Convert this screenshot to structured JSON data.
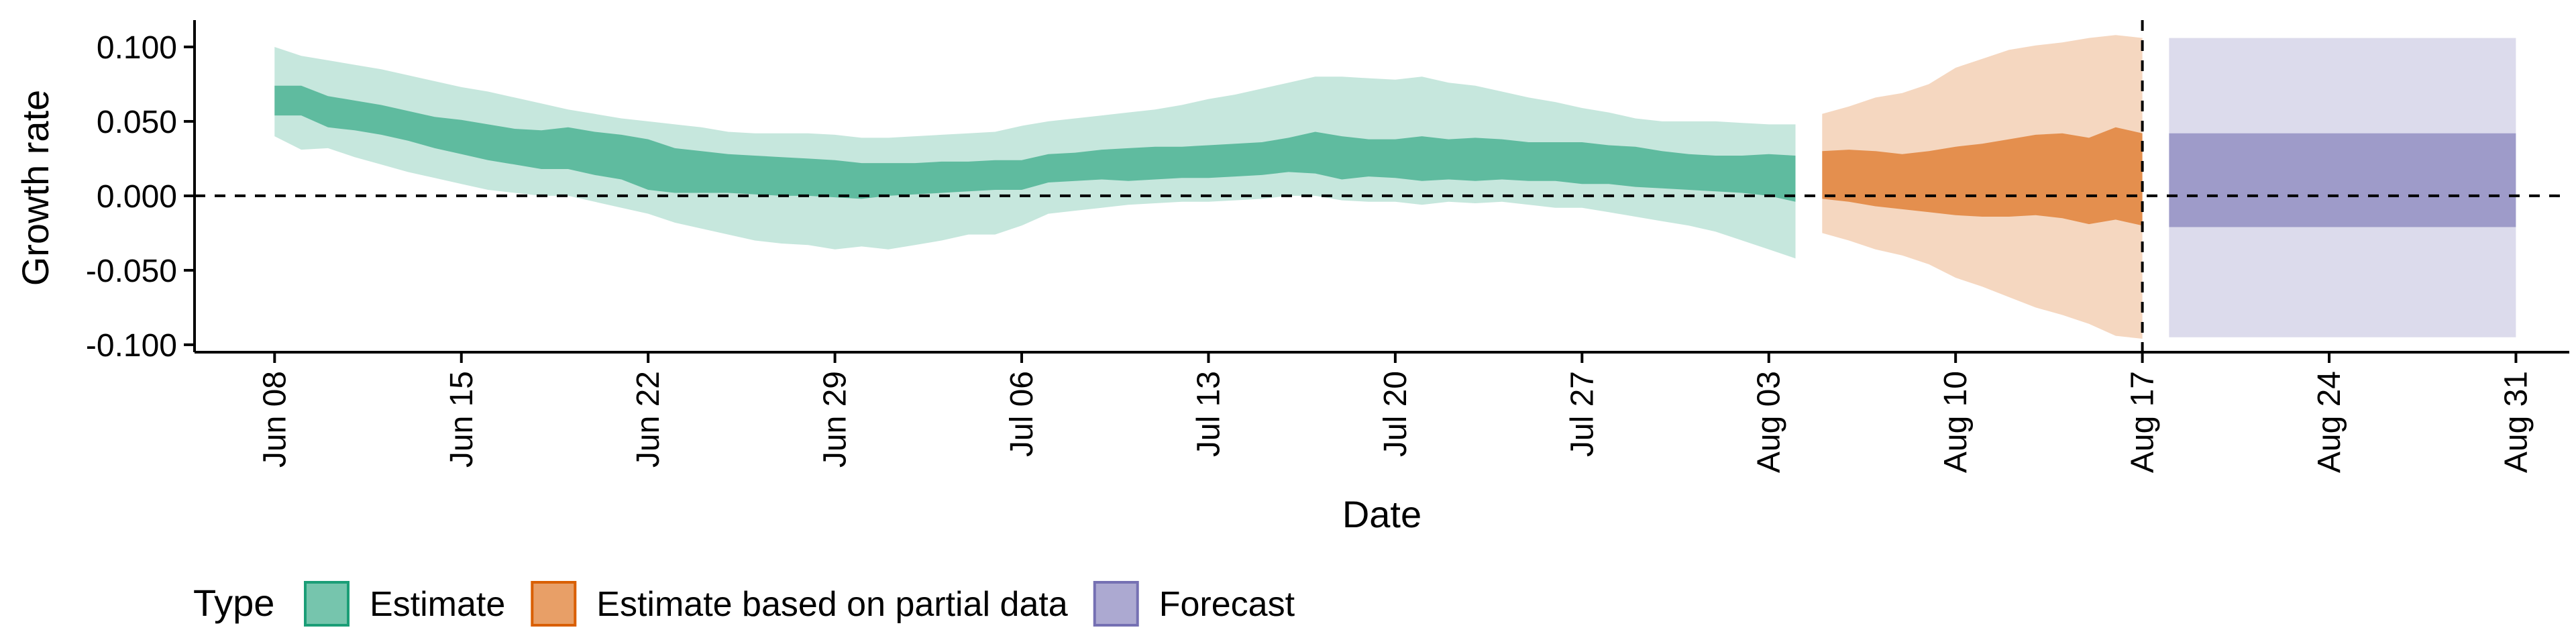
{
  "chart_data": {
    "type": "area",
    "xlabel": "Date",
    "ylabel": "Growth rate",
    "ylim": [
      -0.105,
      0.118
    ],
    "xlim": [
      "2020-06-05",
      "2020-09-02"
    ],
    "x_ticks": [
      "Jun 08",
      "Jun 15",
      "Jun 22",
      "Jun 29",
      "Jul 06",
      "Jul 13",
      "Jul 20",
      "Jul 27",
      "Aug 03",
      "Aug 10",
      "Aug 17",
      "Aug 24",
      "Aug 31"
    ],
    "x_tick_dates": [
      "2020-06-08",
      "2020-06-15",
      "2020-06-22",
      "2020-06-29",
      "2020-07-06",
      "2020-07-13",
      "2020-07-20",
      "2020-07-27",
      "2020-08-03",
      "2020-08-10",
      "2020-08-17",
      "2020-08-24",
      "2020-08-31"
    ],
    "y_ticks": [
      0.1,
      0.05,
      0.0,
      -0.05,
      -0.1
    ],
    "y_tick_labels": [
      "0.100",
      "0.050",
      "0.000",
      "-0.050",
      "-0.100"
    ],
    "hline": 0,
    "vline": "2020-08-17",
    "legend": {
      "title": "Type",
      "position": "bottom-left",
      "entries": [
        "Estimate",
        "Estimate based on partial data",
        "Forecast"
      ]
    },
    "series": [
      {
        "name": "Estimate",
        "color": "#1b9e77",
        "x": [
          "2020-06-08",
          "2020-06-09",
          "2020-06-10",
          "2020-06-11",
          "2020-06-12",
          "2020-06-13",
          "2020-06-14",
          "2020-06-15",
          "2020-06-16",
          "2020-06-17",
          "2020-06-18",
          "2020-06-19",
          "2020-06-20",
          "2020-06-21",
          "2020-06-22",
          "2020-06-23",
          "2020-06-24",
          "2020-06-25",
          "2020-06-26",
          "2020-06-27",
          "2020-06-28",
          "2020-06-29",
          "2020-06-30",
          "2020-07-01",
          "2020-07-02",
          "2020-07-03",
          "2020-07-04",
          "2020-07-05",
          "2020-07-06",
          "2020-07-07",
          "2020-07-08",
          "2020-07-09",
          "2020-07-10",
          "2020-07-11",
          "2020-07-12",
          "2020-07-13",
          "2020-07-14",
          "2020-07-15",
          "2020-07-16",
          "2020-07-17",
          "2020-07-18",
          "2020-07-19",
          "2020-07-20",
          "2020-07-21",
          "2020-07-22",
          "2020-07-23",
          "2020-07-24",
          "2020-07-25",
          "2020-07-26",
          "2020-07-27",
          "2020-07-28",
          "2020-07-29",
          "2020-07-30",
          "2020-07-31",
          "2020-08-01",
          "2020-08-02",
          "2020-08-03",
          "2020-08-04"
        ],
        "lower_90": [
          0.04,
          0.031,
          0.032,
          0.026,
          0.021,
          0.016,
          0.012,
          0.008,
          0.004,
          0.002,
          0.0,
          0.0,
          -0.004,
          -0.008,
          -0.012,
          -0.018,
          -0.022,
          -0.026,
          -0.03,
          -0.032,
          -0.033,
          -0.036,
          -0.034,
          -0.036,
          -0.033,
          -0.03,
          -0.026,
          -0.026,
          -0.02,
          -0.012,
          -0.01,
          -0.008,
          -0.006,
          -0.005,
          -0.004,
          -0.004,
          -0.003,
          -0.002,
          0.0,
          0.0,
          -0.003,
          -0.004,
          -0.004,
          -0.006,
          -0.004,
          -0.005,
          -0.004,
          -0.006,
          -0.008,
          -0.008,
          -0.011,
          -0.014,
          -0.017,
          -0.02,
          -0.024,
          -0.03,
          -0.036,
          -0.042
        ],
        "lower_50": [
          0.054,
          0.054,
          0.046,
          0.044,
          0.041,
          0.037,
          0.032,
          0.028,
          0.024,
          0.021,
          0.018,
          0.018,
          0.014,
          0.011,
          0.004,
          0.002,
          0.002,
          0.002,
          0.001,
          0.0,
          0.0,
          -0.001,
          -0.002,
          0.0,
          0.001,
          0.002,
          0.003,
          0.004,
          0.004,
          0.009,
          0.01,
          0.011,
          0.01,
          0.011,
          0.012,
          0.012,
          0.013,
          0.014,
          0.016,
          0.015,
          0.011,
          0.013,
          0.012,
          0.01,
          0.011,
          0.01,
          0.011,
          0.01,
          0.01,
          0.008,
          0.008,
          0.006,
          0.005,
          0.004,
          0.003,
          0.002,
          0.0,
          -0.004
        ],
        "upper_50": [
          0.074,
          0.074,
          0.067,
          0.064,
          0.061,
          0.057,
          0.053,
          0.051,
          0.048,
          0.045,
          0.044,
          0.046,
          0.043,
          0.041,
          0.038,
          0.032,
          0.03,
          0.028,
          0.027,
          0.026,
          0.025,
          0.024,
          0.022,
          0.022,
          0.022,
          0.023,
          0.023,
          0.024,
          0.024,
          0.028,
          0.029,
          0.031,
          0.032,
          0.033,
          0.033,
          0.034,
          0.035,
          0.036,
          0.039,
          0.043,
          0.04,
          0.038,
          0.038,
          0.04,
          0.038,
          0.039,
          0.038,
          0.036,
          0.036,
          0.036,
          0.034,
          0.033,
          0.03,
          0.028,
          0.027,
          0.027,
          0.028,
          0.027
        ],
        "upper_90": [
          0.1,
          0.094,
          0.091,
          0.088,
          0.085,
          0.081,
          0.077,
          0.073,
          0.07,
          0.066,
          0.062,
          0.058,
          0.055,
          0.052,
          0.05,
          0.048,
          0.046,
          0.043,
          0.042,
          0.042,
          0.042,
          0.041,
          0.039,
          0.039,
          0.04,
          0.041,
          0.042,
          0.043,
          0.047,
          0.05,
          0.052,
          0.054,
          0.056,
          0.058,
          0.061,
          0.065,
          0.068,
          0.072,
          0.076,
          0.08,
          0.08,
          0.079,
          0.078,
          0.08,
          0.076,
          0.074,
          0.07,
          0.066,
          0.063,
          0.059,
          0.056,
          0.052,
          0.05,
          0.05,
          0.05,
          0.049,
          0.048,
          0.048
        ]
      },
      {
        "name": "Estimate based on partial data",
        "color": "#d95f02",
        "x": [
          "2020-08-05",
          "2020-08-06",
          "2020-08-07",
          "2020-08-08",
          "2020-08-09",
          "2020-08-10",
          "2020-08-11",
          "2020-08-12",
          "2020-08-13",
          "2020-08-14",
          "2020-08-15",
          "2020-08-16",
          "2020-08-17"
        ],
        "lower_90": [
          -0.025,
          -0.03,
          -0.036,
          -0.04,
          -0.046,
          -0.055,
          -0.061,
          -0.068,
          -0.075,
          -0.08,
          -0.086,
          -0.094,
          -0.096
        ],
        "lower_50": [
          -0.002,
          -0.004,
          -0.007,
          -0.009,
          -0.011,
          -0.013,
          -0.014,
          -0.014,
          -0.013,
          -0.015,
          -0.019,
          -0.016,
          -0.02
        ],
        "upper_50": [
          0.03,
          0.031,
          0.03,
          0.028,
          0.03,
          0.033,
          0.035,
          0.038,
          0.041,
          0.042,
          0.039,
          0.046,
          0.042
        ],
        "upper_90": [
          0.055,
          0.06,
          0.066,
          0.069,
          0.075,
          0.086,
          0.092,
          0.098,
          0.101,
          0.103,
          0.106,
          0.108,
          0.106
        ]
      },
      {
        "name": "Forecast",
        "color": "#7570b3",
        "x": [
          "2020-08-18",
          "2020-08-31"
        ],
        "lower_90": [
          -0.095,
          -0.095
        ],
        "lower_50": [
          -0.021,
          -0.021
        ],
        "upper_50": [
          0.042,
          0.042
        ],
        "upper_90": [
          0.106,
          0.106
        ]
      }
    ]
  }
}
